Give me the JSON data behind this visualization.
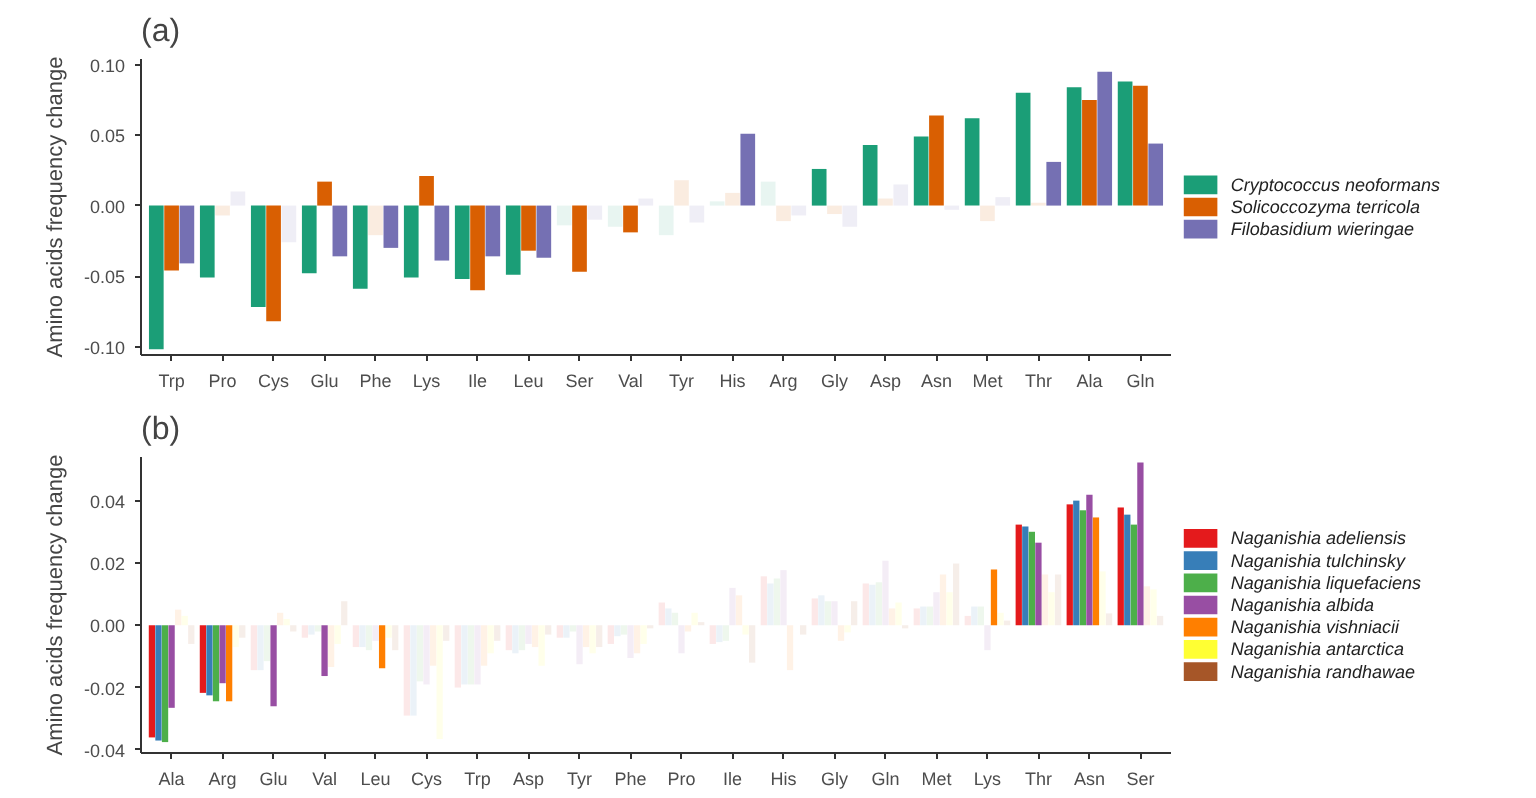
{
  "chart_data": [
    {
      "type": "bar",
      "title": "(a)",
      "ylabel": "Amino acids frequency change",
      "categories": [
        "Trp",
        "Pro",
        "Cys",
        "Glu",
        "Phe",
        "Lys",
        "Ile",
        "Leu",
        "Ser",
        "Val",
        "Tyr",
        "His",
        "Arg",
        "Gly",
        "Asp",
        "Asn",
        "Met",
        "Thr",
        "Ala",
        "Gln"
      ],
      "ylim": [
        -0.106,
        0.104
      ],
      "yticks": [
        {
          "value": -0.1,
          "label": "-0.10"
        },
        {
          "value": -0.05,
          "label": "-0.05"
        },
        {
          "value": 0,
          "label": "0.00"
        },
        {
          "value": 0.05,
          "label": "0.05"
        },
        {
          "value": 0.1,
          "label": "0.10"
        }
      ],
      "grid": false,
      "legend": "right",
      "series": [
        {
          "name": "Cryptococcus neoformans",
          "color": "#1b9e77",
          "values": [
            -0.102,
            -0.051,
            -0.072,
            -0.048,
            -0.059,
            -0.051,
            -0.052,
            -0.049,
            -0.014,
            -0.015,
            -0.021,
            0.003,
            0.017,
            0.026,
            0.043,
            0.049,
            0.062,
            0.08,
            0.084,
            0.088
          ],
          "colors": [
            "#1b9e77",
            "#1b9e77",
            "#1b9e77",
            "#1b9e77",
            "#1b9e77",
            "#1b9e77",
            "#1b9e77",
            "#1b9e77",
            "#e8f5f1",
            "#e8f5f1",
            "#e8f5f1",
            "#e8f5f1",
            "#e8f5f1",
            "#1b9e77",
            "#1b9e77",
            "#1b9e77",
            "#1b9e77",
            "#1b9e77",
            "#1b9e77",
            "#1b9e77"
          ]
        },
        {
          "name": "Solicoccozyma terricola",
          "color": "#d95f02",
          "values": [
            -0.046,
            -0.007,
            -0.082,
            0.017,
            -0.021,
            0.021,
            -0.06,
            -0.032,
            -0.047,
            -0.019,
            0.018,
            0.009,
            -0.011,
            -0.006,
            0.005,
            0.064,
            -0.011,
            0.002,
            0.075,
            0.085
          ],
          "colors": [
            "#d95f02",
            "#fbece0",
            "#d95f02",
            "#d95f02",
            "#fbece0",
            "#d95f02",
            "#d95f02",
            "#d95f02",
            "#d95f02",
            "#d95f02",
            "#fbece0",
            "#fbece0",
            "#fbece0",
            "#fbece0",
            "#fbece0",
            "#d95f02",
            "#fbece0",
            "#fbece0",
            "#d95f02",
            "#d95f02"
          ]
        },
        {
          "name": "Filobasidium wieringae",
          "color": "#7570b3",
          "values": [
            -0.041,
            0.01,
            -0.026,
            -0.036,
            -0.03,
            -0.039,
            -0.036,
            -0.037,
            -0.01,
            0.005,
            -0.012,
            0.051,
            -0.007,
            -0.015,
            0.015,
            -0.003,
            0.006,
            0.031,
            0.095,
            0.044
          ],
          "colors": [
            "#7570b3",
            "#efeef6",
            "#efeef6",
            "#7570b3",
            "#7570b3",
            "#7570b3",
            "#7570b3",
            "#7570b3",
            "#efeef6",
            "#efeef6",
            "#efeef6",
            "#7570b3",
            "#efeef6",
            "#efeef6",
            "#efeef6",
            "#efeef6",
            "#efeef6",
            "#7570b3",
            "#7570b3",
            "#7570b3"
          ]
        }
      ]
    },
    {
      "type": "bar",
      "title": "(b)",
      "ylabel": "Amino acids frequency change",
      "categories": [
        "Ala",
        "Arg",
        "Glu",
        "Val",
        "Leu",
        "Cys",
        "Trp",
        "Asp",
        "Tyr",
        "Phe",
        "Pro",
        "Ile",
        "His",
        "Gly",
        "Gln",
        "Met",
        "Lys",
        "Thr",
        "Asn",
        "Ser"
      ],
      "ylim": [
        -0.041,
        0.054
      ],
      "yticks": [
        {
          "value": -0.04,
          "label": "-0.04"
        },
        {
          "value": -0.02,
          "label": "-0.02"
        },
        {
          "value": 0,
          "label": "0.00"
        },
        {
          "value": 0.02,
          "label": "0.02"
        },
        {
          "value": 0.04,
          "label": "0.04"
        }
      ],
      "grid": false,
      "legend": "right",
      "series": [
        {
          "name": "Naganishia adeliensis",
          "color": "#e41a1c",
          "values": [
            -0.036,
            -0.0217,
            -0.0144,
            -0.004,
            -0.007,
            -0.029,
            -0.02,
            -0.008,
            -0.004,
            -0.006,
            0.0073,
            -0.006,
            0.0157,
            0.0086,
            0.0134,
            0.0054,
            0.003,
            0.0323,
            0.0388,
            0.0378
          ],
          "colors": [
            "#e41a1c",
            "#e41a1c",
            "#fce8e8",
            "#fce8e8",
            "#fce8e8",
            "#fce8e8",
            "#fce8e8",
            "#fce8e8",
            "#fce8e8",
            "#fce8e8",
            "#fce8e8",
            "#fce8e8",
            "#fce8e8",
            "#fce8e8",
            "#fce8e8",
            "#fce8e8",
            "#fce8e8",
            "#e41a1c",
            "#e41a1c",
            "#e41a1c"
          ]
        },
        {
          "name": "Naganishia tulchinsky",
          "color": "#377eb8",
          "values": [
            -0.037,
            -0.0225,
            -0.0144,
            -0.003,
            -0.007,
            -0.029,
            -0.019,
            -0.009,
            -0.004,
            -0.0035,
            0.0054,
            -0.0054,
            0.0134,
            0.0096,
            0.013,
            0.006,
            0.006,
            0.0317,
            0.04,
            0.0355
          ],
          "colors": [
            "#377eb8",
            "#377eb8",
            "#ebf2f8",
            "#ebf2f8",
            "#ebf2f8",
            "#ebf2f8",
            "#ebf2f8",
            "#ebf2f8",
            "#ebf2f8",
            "#ebf2f8",
            "#ebf2f8",
            "#ebf2f8",
            "#ebf2f8",
            "#ebf2f8",
            "#ebf2f8",
            "#ebf2f8",
            "#ebf2f8",
            "#377eb8",
            "#377eb8",
            "#377eb8"
          ]
        },
        {
          "name": "Naganishia liquefaciens",
          "color": "#4daf4a",
          "values": [
            -0.0375,
            -0.0244,
            -0.0115,
            -0.002,
            -0.008,
            -0.018,
            -0.019,
            -0.008,
            -0.002,
            -0.003,
            0.004,
            -0.005,
            0.015,
            0.0077,
            0.0138,
            0.006,
            0.006,
            0.03,
            0.0369,
            0.0323
          ],
          "colors": [
            "#4daf4a",
            "#4daf4a",
            "#edf7ed",
            "#edf7ed",
            "#edf7ed",
            "#edf7ed",
            "#edf7ed",
            "#edf7ed",
            "#edf7ed",
            "#edf7ed",
            "#edf7ed",
            "#edf7ed",
            "#edf7ed",
            "#edf7ed",
            "#edf7ed",
            "#edf7ed",
            "#edf7ed",
            "#4daf4a",
            "#4daf4a",
            "#4daf4a"
          ]
        },
        {
          "name": "Naganishia albida",
          "color": "#984ea3",
          "values": [
            -0.0265,
            -0.0186,
            -0.026,
            -0.0163,
            -0.005,
            -0.019,
            -0.019,
            -0.006,
            -0.0125,
            -0.0105,
            -0.009,
            0.012,
            0.0177,
            0.0077,
            0.0207,
            0.0106,
            -0.008,
            0.0265,
            0.0419,
            0.0522
          ],
          "colors": [
            "#984ea3",
            "#984ea3",
            "#984ea3",
            "#984ea3",
            "#f5edf6",
            "#f5edf6",
            "#f5edf6",
            "#f5edf6",
            "#f5edf6",
            "#f5edf6",
            "#f5edf6",
            "#f5edf6",
            "#f5edf6",
            "#f5edf6",
            "#f5edf6",
            "#f5edf6",
            "#f5edf6",
            "#984ea3",
            "#984ea3",
            "#984ea3"
          ]
        },
        {
          "name": "Naganishia vishniacii",
          "color": "#ff7f00",
          "values": [
            0.005,
            -0.0244,
            0.004,
            -0.0134,
            -0.0138,
            -0.013,
            -0.013,
            -0.007,
            -0.007,
            -0.009,
            -0.002,
            0.0096,
            -0.0144,
            -0.005,
            0.0054,
            0.0163,
            0.0179,
            0.0163,
            0.0346,
            0.0125
          ],
          "colors": [
            "#fff2e6",
            "#ff7f00",
            "#fff2e6",
            "#fff2e6",
            "#ff7f00",
            "#fff2e6",
            "#fff2e6",
            "#fff2e6",
            "#fff2e6",
            "#fff2e6",
            "#fff2e6",
            "#fff2e6",
            "#fff2e6",
            "#fff2e6",
            "#fff2e6",
            "#fff2e6",
            "#ff7f00",
            "#fff2e6",
            "#ff7f00",
            "#fff2e6"
          ]
        },
        {
          "name": "Naganishia antarctica",
          "color": "#ffff33",
          "values": [
            0.003,
            -0.007,
            0.002,
            -0.006,
            -0.004,
            -0.0365,
            -0.009,
            -0.013,
            -0.009,
            -0.006,
            0.004,
            -0.003,
            0.0,
            -0.0023,
            0.0073,
            0.0106,
            0.004,
            0.0106,
            0.0173,
            0.0115
          ],
          "colors": [
            "#ffffea",
            "#ffffea",
            "#ffffea",
            "#ffffea",
            "#ffffea",
            "#ffffea",
            "#ffffea",
            "#ffffea",
            "#ffffea",
            "#ffffea",
            "#ffffea",
            "#ffffea",
            "#ffffea",
            "#ffffea",
            "#ffffea",
            "#ffffea",
            "#ffffea",
            "#ffffea",
            "#ffffea",
            "#ffffea"
          ]
        },
        {
          "name": "Naganishia randhawae",
          "color": "#a65628",
          "values": [
            -0.006,
            -0.004,
            -0.002,
            0.0077,
            -0.008,
            -0.005,
            -0.005,
            -0.003,
            -0.007,
            -0.001,
            0.001,
            -0.012,
            -0.003,
            0.0077,
            -0.001,
            0.0198,
            0.0015,
            0.0163,
            0.0038,
            0.003
          ],
          "colors": [
            "#f6eee9",
            "#f6eee9",
            "#f6eee9",
            "#f6eee9",
            "#f6eee9",
            "#f6eee9",
            "#f6eee9",
            "#f6eee9",
            "#f6eee9",
            "#f6eee9",
            "#f6eee9",
            "#f6eee9",
            "#f6eee9",
            "#f6eee9",
            "#f6eee9",
            "#f6eee9",
            "#f6eee9",
            "#f6eee9",
            "#f6eee9",
            "#f6eee9"
          ]
        }
      ]
    }
  ]
}
